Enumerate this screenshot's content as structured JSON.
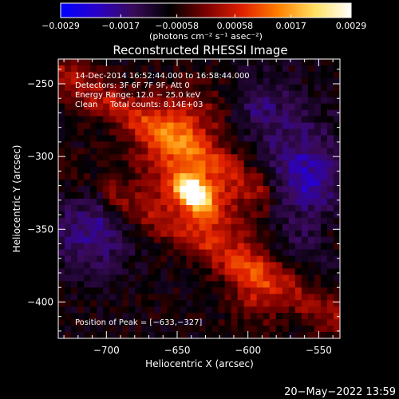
{
  "chart_data": {
    "type": "heatmap",
    "title": "Reconstructed RHESSI Image",
    "xlabel": "Heliocentric X (arcsec)",
    "ylabel": "Heliocentric Y (arcsec)",
    "xlim": [
      -734,
      -535
    ],
    "ylim": [
      -425,
      -233
    ],
    "xticks": [
      {
        "value": -700,
        "label": "−700"
      },
      {
        "value": -650,
        "label": "−650"
      },
      {
        "value": -600,
        "label": "−600"
      },
      {
        "value": -550,
        "label": "−550"
      }
    ],
    "yticks": [
      {
        "value": -250,
        "label": "−250"
      },
      {
        "value": -300,
        "label": "−300"
      },
      {
        "value": -350,
        "label": "−350"
      },
      {
        "value": -400,
        "label": "−400"
      }
    ],
    "colorbar": {
      "min": -0.0029,
      "max": 0.0029,
      "unit_label": "(photons cm⁻² s⁻¹ asec⁻²)",
      "ticks": [
        {
          "value": -0.0029,
          "label": "−0.0029"
        },
        {
          "value": -0.0017,
          "label": "−0.0017"
        },
        {
          "value": -0.00058,
          "label": "−0.00058"
        },
        {
          "value": 0.00058,
          "label": "0.00058"
        },
        {
          "value": 0.0017,
          "label": "0.0017"
        },
        {
          "value": 0.0029,
          "label": "0.0029"
        }
      ],
      "colors": [
        "#0000ff",
        "#2a00c8",
        "#3a0a5a",
        "#000000",
        "#7a0000",
        "#e02000",
        "#ff8000",
        "#ffe060",
        "#ffffff"
      ]
    },
    "peak": {
      "x": -633,
      "y": -327,
      "value": 0.0029
    },
    "annotations": [
      "14-Dec-2014 16:52:44.000 to 16:58:44.000",
      "Detectors: 3F 6F 7F 9F, Att 0",
      "Energy Range: 12.0 − 25.0 keV",
      "Clean     Total counts: 8.14E+03"
    ],
    "peak_label": "Position of Peak = [−633,−327]"
  },
  "footer": {
    "timestamp": "20−May−2022 13:59"
  }
}
